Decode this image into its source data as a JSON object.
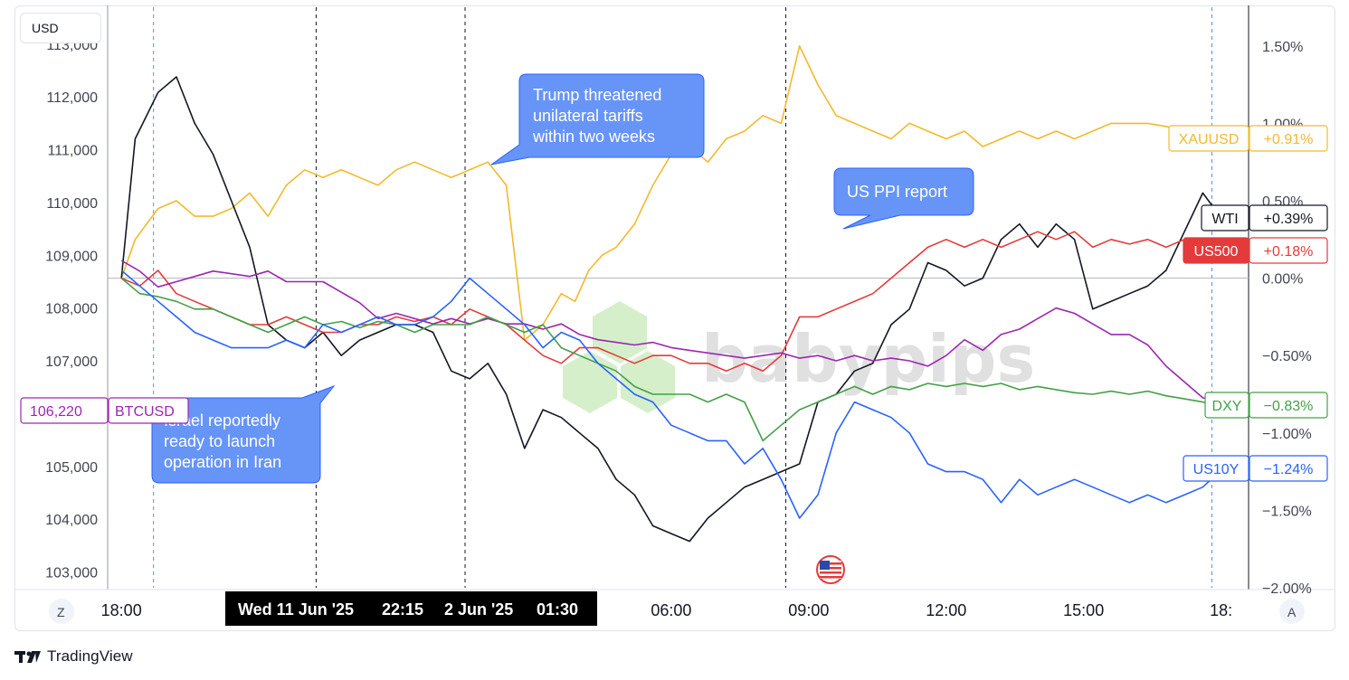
{
  "currency_label": "USD",
  "brand": "TradingView",
  "watermark": "babypips",
  "z_button": "Z",
  "a_button": "A",
  "crosshair": {
    "left": "Wed 11 Jun '25",
    "mid": "22:15",
    "right": "2 Jun '25",
    "far": "01:30"
  },
  "chart_data": {
    "type": "line",
    "left_axis": {
      "title": "USD",
      "ticks": [
        113000,
        112000,
        111000,
        110000,
        109000,
        108000,
        107000,
        105000,
        104000,
        103000
      ],
      "tick_labels": [
        "113,000",
        "112,000",
        "111,000",
        "110,000",
        "109,000",
        "108,000",
        "107,000",
        "105,000",
        "104,000",
        "103,000"
      ],
      "range": [
        102700,
        113700
      ]
    },
    "right_axis": {
      "ticks": [
        1.5,
        1.0,
        0.5,
        0.0,
        -0.5,
        -1.0,
        -1.5,
        -2.0
      ],
      "tick_labels": [
        "1.50%",
        "1.00%",
        "0.50%",
        "0.00%",
        "−0.50%",
        "−1.00%",
        "−1.50%",
        "−2.00%"
      ],
      "range": [
        -2.0,
        1.75
      ]
    },
    "x_axis": {
      "ticks": [
        "18:00",
        "06:00",
        "09:00",
        "12:00",
        "15:00",
        "18:"
      ],
      "range_hours": [
        -0.3,
        24.6
      ],
      "tick_hours": [
        0,
        12,
        15,
        18,
        21,
        24
      ]
    },
    "events": [
      {
        "label": "Wed 11 Jun '25 22:15",
        "hour": 4.25
      },
      {
        "label": "2 Jun '25 01:30",
        "hour": 7.5
      },
      {
        "label": "US PPI report",
        "hour": 14.5
      }
    ],
    "annotations": [
      {
        "text": [
          "Trump threatened",
          "unilateral tariffs",
          "within two weeks"
        ]
      },
      {
        "text": [
          "US PPI report"
        ]
      },
      {
        "text": [
          "Israel reportedly",
          "ready to launch",
          "operation in Iran"
        ]
      }
    ],
    "series": [
      {
        "name": "XAUUSD",
        "color": "#f2b92d",
        "axis": "right",
        "last": "+0.91%",
        "x": [
          0,
          0.3,
          0.8,
          1.2,
          1.6,
          2.0,
          2.4,
          2.8,
          3.2,
          3.6,
          4.0,
          4.4,
          4.8,
          5.2,
          5.6,
          6.0,
          6.4,
          6.8,
          7.2,
          7.6,
          8.0,
          8.4,
          8.8,
          9.2,
          9.6,
          9.9,
          10.2,
          10.5,
          10.8,
          11.2,
          11.6,
          12.0,
          12.4,
          12.8,
          13.2,
          13.6,
          14.0,
          14.4,
          14.8,
          15.2,
          15.6,
          16.0,
          16.4,
          16.8,
          17.2,
          17.6,
          18.0,
          18.4,
          18.8,
          19.2,
          19.6,
          20.0,
          20.4,
          20.8,
          21.2,
          21.6,
          22.0,
          22.4,
          22.8,
          23.2,
          23.6,
          24.0
        ],
        "y": [
          0.0,
          0.25,
          0.45,
          0.5,
          0.4,
          0.4,
          0.45,
          0.55,
          0.4,
          0.6,
          0.7,
          0.65,
          0.7,
          0.65,
          0.6,
          0.7,
          0.75,
          0.7,
          0.65,
          0.7,
          0.75,
          0.6,
          -0.4,
          -0.3,
          -0.1,
          -0.15,
          0.05,
          0.15,
          0.2,
          0.35,
          0.6,
          0.8,
          0.85,
          0.75,
          0.9,
          0.95,
          1.05,
          1.0,
          1.5,
          1.25,
          1.05,
          1.0,
          0.95,
          0.9,
          1.0,
          0.95,
          0.9,
          0.95,
          0.85,
          0.9,
          0.95,
          0.9,
          0.95,
          0.9,
          0.95,
          1.0,
          1.0,
          1.0,
          0.98,
          0.95,
          0.93,
          0.91
        ]
      },
      {
        "name": "WTI",
        "color": "#131722",
        "axis": "right",
        "last": "+0.39%",
        "x": [
          0,
          0.3,
          0.8,
          1.2,
          1.6,
          2.0,
          2.4,
          2.8,
          3.2,
          3.6,
          4.0,
          4.4,
          4.8,
          5.2,
          5.6,
          6.0,
          6.4,
          6.8,
          7.2,
          7.6,
          8.0,
          8.4,
          8.8,
          9.2,
          9.6,
          10.0,
          10.4,
          10.8,
          11.2,
          11.6,
          12.0,
          12.4,
          12.8,
          13.2,
          13.6,
          14.0,
          14.4,
          14.8,
          15.2,
          15.6,
          16.0,
          16.4,
          16.8,
          17.2,
          17.6,
          18.0,
          18.4,
          18.8,
          19.2,
          19.6,
          20.0,
          20.4,
          20.8,
          21.2,
          21.6,
          22.0,
          22.4,
          22.8,
          23.2,
          23.6,
          24.0
        ],
        "y": [
          0.0,
          0.9,
          1.2,
          1.3,
          1.0,
          0.8,
          0.5,
          0.2,
          -0.3,
          -0.4,
          -0.45,
          -0.35,
          -0.5,
          -0.4,
          -0.35,
          -0.3,
          -0.3,
          -0.35,
          -0.6,
          -0.65,
          -0.55,
          -0.75,
          -1.1,
          -0.85,
          -0.9,
          -1.0,
          -1.1,
          -1.3,
          -1.4,
          -1.6,
          -1.65,
          -1.7,
          -1.55,
          -1.45,
          -1.35,
          -1.3,
          -1.25,
          -1.2,
          -0.8,
          -0.75,
          -0.6,
          -0.55,
          -0.3,
          -0.2,
          0.1,
          0.05,
          -0.05,
          0.0,
          0.25,
          0.35,
          0.2,
          0.35,
          0.25,
          -0.2,
          -0.15,
          -0.1,
          -0.05,
          0.05,
          0.3,
          0.55,
          0.39
        ]
      },
      {
        "name": "US500",
        "color": "#e33b3b",
        "axis": "right",
        "last": "+0.18%",
        "x": [
          0,
          0.4,
          0.8,
          1.2,
          1.6,
          2.0,
          2.4,
          2.8,
          3.2,
          3.6,
          4.0,
          4.4,
          4.8,
          5.2,
          5.6,
          6.0,
          6.4,
          6.8,
          7.2,
          7.6,
          8.0,
          8.4,
          8.8,
          9.2,
          9.6,
          10.0,
          10.4,
          10.8,
          11.2,
          11.6,
          12.0,
          12.4,
          12.8,
          13.2,
          13.6,
          14.0,
          14.4,
          14.8,
          15.2,
          15.6,
          16.0,
          16.4,
          16.8,
          17.2,
          17.6,
          18.0,
          18.4,
          18.8,
          19.2,
          19.6,
          20.0,
          20.4,
          20.8,
          21.2,
          21.6,
          22.0,
          22.4,
          22.8,
          23.2,
          23.6,
          24.0
        ],
        "y": [
          0.0,
          -0.05,
          0.05,
          -0.1,
          -0.15,
          -0.2,
          -0.25,
          -0.3,
          -0.3,
          -0.25,
          -0.3,
          -0.35,
          -0.35,
          -0.3,
          -0.3,
          -0.25,
          -0.28,
          -0.25,
          -0.3,
          -0.2,
          -0.25,
          -0.3,
          -0.4,
          -0.5,
          -0.55,
          -0.45,
          -0.45,
          -0.5,
          -0.55,
          -0.5,
          -0.5,
          -0.55,
          -0.55,
          -0.6,
          -0.55,
          -0.6,
          -0.5,
          -0.25,
          -0.25,
          -0.2,
          -0.15,
          -0.1,
          0.0,
          0.1,
          0.2,
          0.25,
          0.2,
          0.25,
          0.2,
          0.25,
          0.3,
          0.25,
          0.3,
          0.2,
          0.25,
          0.22,
          0.25,
          0.2,
          0.25,
          0.2,
          0.18
        ]
      },
      {
        "name": "BTCUSD",
        "color": "#9c27b0",
        "axis": "left",
        "last": "106,220",
        "x": [
          0,
          0.4,
          0.8,
          1.2,
          1.6,
          2.0,
          2.4,
          2.8,
          3.2,
          3.6,
          4.0,
          4.4,
          4.8,
          5.2,
          5.6,
          6.0,
          6.4,
          6.8,
          7.2,
          7.6,
          8.0,
          8.4,
          8.8,
          9.2,
          9.6,
          10.0,
          10.4,
          10.8,
          11.2,
          11.6,
          12.0,
          12.4,
          12.8,
          13.2,
          13.6,
          14.0,
          14.4,
          14.8,
          15.2,
          15.6,
          16.0,
          16.4,
          16.8,
          17.2,
          17.6,
          18.0,
          18.4,
          18.8,
          19.2,
          19.6,
          20.0,
          20.4,
          20.8,
          21.2,
          21.6,
          22.0,
          22.4,
          22.8,
          23.2,
          23.6,
          24.0
        ],
        "y": [
          108900,
          108700,
          108400,
          108500,
          108600,
          108700,
          108650,
          108600,
          108700,
          108500,
          108500,
          108500,
          108300,
          108100,
          107800,
          107900,
          107800,
          107700,
          107800,
          107700,
          107800,
          107700,
          107700,
          107600,
          107700,
          107500,
          107400,
          107350,
          107300,
          107350,
          107250,
          107200,
          107150,
          107100,
          107050,
          107100,
          107150,
          107050,
          107100,
          107000,
          107100,
          107000,
          107050,
          107000,
          106900,
          107100,
          107400,
          107200,
          107500,
          107600,
          107800,
          108000,
          107900,
          107700,
          107500,
          107500,
          107300,
          106900,
          106600,
          106300,
          106220
        ]
      },
      {
        "name": "DXY",
        "color": "#43a047",
        "axis": "right",
        "last": "−0.83%",
        "x": [
          0,
          0.4,
          0.8,
          1.2,
          1.6,
          2.0,
          2.4,
          2.8,
          3.2,
          3.6,
          4.0,
          4.4,
          4.8,
          5.2,
          5.6,
          6.0,
          6.4,
          6.8,
          7.2,
          7.6,
          8.0,
          8.4,
          8.8,
          9.2,
          9.6,
          10.0,
          10.4,
          10.8,
          11.2,
          11.6,
          12.0,
          12.4,
          12.8,
          13.2,
          13.6,
          14.0,
          14.4,
          14.8,
          15.2,
          15.6,
          16.0,
          16.4,
          16.8,
          17.2,
          17.6,
          18.0,
          18.4,
          18.8,
          19.2,
          19.6,
          20.0,
          20.4,
          20.8,
          21.2,
          21.6,
          22.0,
          22.4,
          22.8,
          23.2,
          23.6,
          24.0
        ],
        "y": [
          0.0,
          -0.1,
          -0.12,
          -0.15,
          -0.2,
          -0.2,
          -0.25,
          -0.3,
          -0.35,
          -0.3,
          -0.25,
          -0.3,
          -0.28,
          -0.32,
          -0.28,
          -0.3,
          -0.35,
          -0.3,
          -0.3,
          -0.3,
          -0.25,
          -0.3,
          -0.35,
          -0.3,
          -0.45,
          -0.5,
          -0.55,
          -0.6,
          -0.7,
          -0.75,
          -0.75,
          -0.75,
          -0.8,
          -0.75,
          -0.8,
          -1.05,
          -0.95,
          -0.85,
          -0.8,
          -0.75,
          -0.7,
          -0.75,
          -0.7,
          -0.72,
          -0.68,
          -0.7,
          -0.68,
          -0.7,
          -0.68,
          -0.72,
          -0.7,
          -0.72,
          -0.74,
          -0.75,
          -0.73,
          -0.75,
          -0.73,
          -0.76,
          -0.78,
          -0.8,
          -0.83
        ]
      },
      {
        "name": "US10Y",
        "color": "#2962ff",
        "axis": "right",
        "last": "−1.24%",
        "x": [
          0,
          0.4,
          0.8,
          1.2,
          1.6,
          2.0,
          2.4,
          2.8,
          3.2,
          3.6,
          4.0,
          4.4,
          4.8,
          5.2,
          5.6,
          6.0,
          6.4,
          6.8,
          7.2,
          7.6,
          8.0,
          8.4,
          8.8,
          9.2,
          9.6,
          10.0,
          10.4,
          10.8,
          11.2,
          11.6,
          12.0,
          12.4,
          12.8,
          13.2,
          13.6,
          14.0,
          14.4,
          14.8,
          15.2,
          15.6,
          16.0,
          16.4,
          16.8,
          17.2,
          17.6,
          18.0,
          18.4,
          18.8,
          19.2,
          19.6,
          20.0,
          20.4,
          20.8,
          21.2,
          21.6,
          22.0,
          22.4,
          22.8,
          23.2,
          23.6,
          24.0
        ],
        "y": [
          0.05,
          -0.05,
          -0.15,
          -0.25,
          -0.35,
          -0.4,
          -0.45,
          -0.45,
          -0.45,
          -0.4,
          -0.45,
          -0.3,
          -0.35,
          -0.3,
          -0.25,
          -0.3,
          -0.3,
          -0.25,
          -0.15,
          0.0,
          -0.1,
          -0.2,
          -0.3,
          -0.45,
          -0.35,
          -0.4,
          -0.55,
          -0.65,
          -0.75,
          -0.8,
          -0.95,
          -1.0,
          -1.05,
          -1.05,
          -1.2,
          -1.1,
          -1.3,
          -1.55,
          -1.4,
          -1.0,
          -0.8,
          -0.85,
          -0.9,
          -1.0,
          -1.2,
          -1.25,
          -1.25,
          -1.3,
          -1.45,
          -1.3,
          -1.4,
          -1.35,
          -1.3,
          -1.35,
          -1.4,
          -1.45,
          -1.4,
          -1.45,
          -1.4,
          -1.35,
          -1.24
        ]
      }
    ],
    "legend": "right-axis labels",
    "grid": false
  }
}
